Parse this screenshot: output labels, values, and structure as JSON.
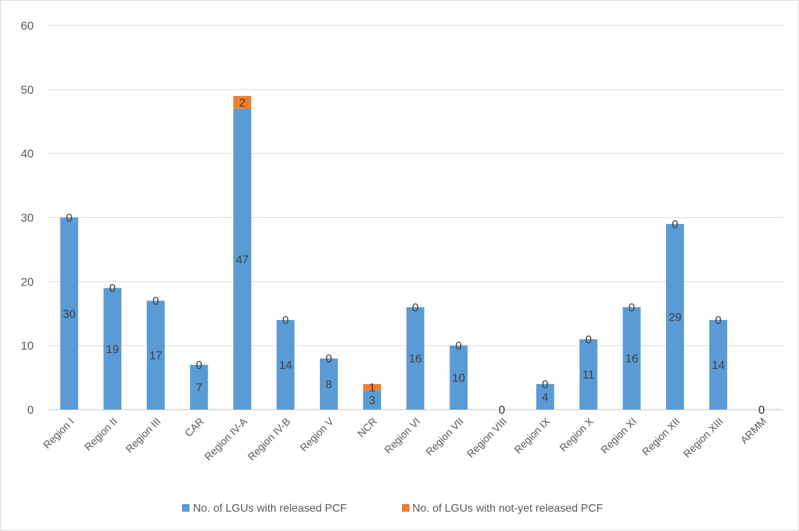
{
  "chart_data": {
    "type": "bar",
    "stacked": true,
    "categories": [
      "Region I",
      "Region II",
      "Region III",
      "CAR",
      "Region IV-A",
      "Region IV-B",
      "Region V",
      "NCR",
      "Region VI",
      "Region VII",
      "Region VIII",
      "Region IX",
      "Region X",
      "Region XI",
      "Region XII",
      "Region XIII",
      "ARMM"
    ],
    "series": [
      {
        "name": "No. of LGUs with released PCF",
        "color": "#5b9bd5",
        "values": [
          30,
          19,
          17,
          7,
          47,
          14,
          8,
          3,
          16,
          10,
          0,
          4,
          11,
          16,
          29,
          14,
          0
        ]
      },
      {
        "name": "No. of LGUs with not-yet released PCF",
        "color": "#ed7d31",
        "values": [
          0,
          0,
          0,
          0,
          2,
          0,
          0,
          1,
          0,
          0,
          0,
          0,
          0,
          0,
          0,
          0,
          0
        ]
      }
    ],
    "yticks": [
      0,
      10,
      20,
      30,
      40,
      50,
      60
    ],
    "ylim": [
      0,
      60
    ],
    "grid": true,
    "legend": "bottom"
  }
}
